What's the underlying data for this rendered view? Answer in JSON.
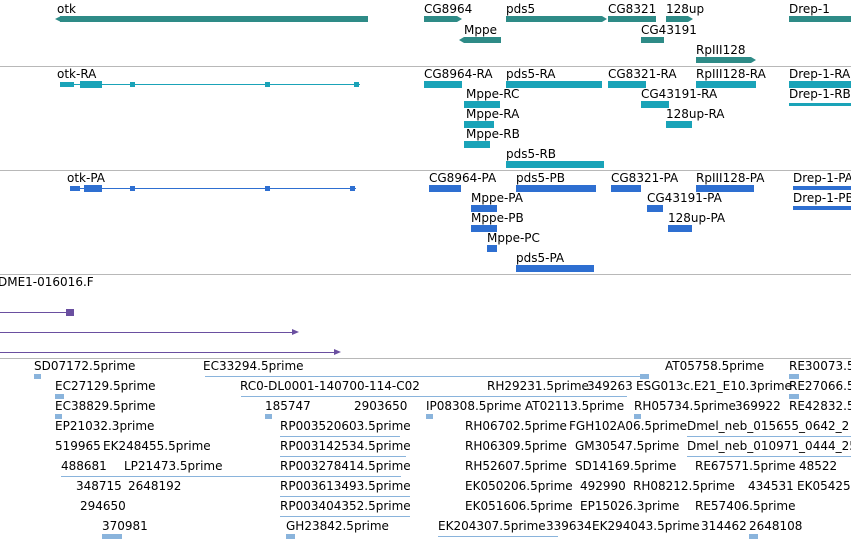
{
  "colors": {
    "gene": "#2e8b87",
    "mrna": "#1aa3b8",
    "protein": "#2e6fd1",
    "clone": "#6a4fa0",
    "est": "#8ab4dc",
    "separator": "#b8b8b8"
  },
  "tracks": {
    "gene_track": {
      "labels": [
        {
          "text": "otk"
        },
        {
          "text": "CG8964"
        },
        {
          "text": "pds5"
        },
        {
          "text": "CG8321"
        },
        {
          "text": "128up"
        },
        {
          "text": "Drep-1"
        },
        {
          "text": "Mppe"
        },
        {
          "text": "CG43191"
        },
        {
          "text": "RpIII128"
        }
      ]
    },
    "mrna_track": {
      "labels": [
        {
          "text": "otk-RA"
        },
        {
          "text": "CG8964-RA"
        },
        {
          "text": "pds5-RA"
        },
        {
          "text": "CG8321-RA"
        },
        {
          "text": "RpIII128-RA"
        },
        {
          "text": "Drep-1-RA"
        },
        {
          "text": "Mppe-RC"
        },
        {
          "text": "CG43191-RA"
        },
        {
          "text": "Drep-1-RB"
        },
        {
          "text": "Mppe-RA"
        },
        {
          "text": "128up-RA"
        },
        {
          "text": "Mppe-RB"
        },
        {
          "text": "pds5-RB"
        }
      ]
    },
    "protein_track": {
      "labels": [
        {
          "text": "otk-PA"
        },
        {
          "text": "CG8964-PA"
        },
        {
          "text": "pds5-PB"
        },
        {
          "text": "CG8321-PA"
        },
        {
          "text": "RpIII128-PA"
        },
        {
          "text": "Drep-1-PA"
        },
        {
          "text": "Mppe-PA"
        },
        {
          "text": "CG43191-PA"
        },
        {
          "text": "Drep-1-PB"
        },
        {
          "text": "Mppe-PB"
        },
        {
          "text": "128up-PA"
        },
        {
          "text": "Mppe-PC"
        },
        {
          "text": "pds5-PA"
        }
      ]
    },
    "clone_track": {
      "labels": [
        {
          "text": "DME1-016016.F"
        }
      ]
    },
    "est_track": {
      "labels": [
        {
          "text": "SD07172.5prime"
        },
        {
          "text": "EC33294.5prime"
        },
        {
          "text": "AT05758.5prime"
        },
        {
          "text": "RE30073.5"
        },
        {
          "text": "EC27129.5prime"
        },
        {
          "text": "RC0-DL0001-140700-114-C02"
        },
        {
          "text": "RH29231.5prime"
        },
        {
          "text": "349263"
        },
        {
          "text": "ESG013c.E21_E10.3prime"
        },
        {
          "text": "RE27066.5"
        },
        {
          "text": "EC38829.5prime"
        },
        {
          "text": "185747"
        },
        {
          "text": "2903650"
        },
        {
          "text": "IP08308.5prime"
        },
        {
          "text": "AT02113.5prime"
        },
        {
          "text": "RH05734.5prime"
        },
        {
          "text": "369922"
        },
        {
          "text": "RE42832.5"
        },
        {
          "text": "EP21032.3prime"
        },
        {
          "text": "RP003520603.5prime"
        },
        {
          "text": "RH06702.5prime"
        },
        {
          "text": "FGH102A06.5prime"
        },
        {
          "text": "Dmel_neb_015655_0642_2"
        },
        {
          "text": "519965"
        },
        {
          "text": "EK248455.5prime"
        },
        {
          "text": "RP003142534.5prime"
        },
        {
          "text": "RH06309.5prime"
        },
        {
          "text": "GM30547.5prime"
        },
        {
          "text": "Dmel_neb_010971_0444_25"
        },
        {
          "text": "488681"
        },
        {
          "text": "LP21473.5prime"
        },
        {
          "text": "RP003278414.5prime"
        },
        {
          "text": "RH52607.5prime"
        },
        {
          "text": "SD14169.5prime"
        },
        {
          "text": "RE67571.5prime"
        },
        {
          "text": "48522"
        },
        {
          "text": "348715"
        },
        {
          "text": "2648192"
        },
        {
          "text": "RP003613493.5prime"
        },
        {
          "text": "EK050206.5prime"
        },
        {
          "text": "492990"
        },
        {
          "text": "RH08212.5prime"
        },
        {
          "text": "434531"
        },
        {
          "text": "EK05425"
        },
        {
          "text": "294650"
        },
        {
          "text": "RP003404352.5prime"
        },
        {
          "text": "EK051606.5prime"
        },
        {
          "text": "EP15026.3prime"
        },
        {
          "text": "RE57406.5prime"
        },
        {
          "text": "370981"
        },
        {
          "text": "GH23842.5prime"
        },
        {
          "text": "EK204307.5prime"
        },
        {
          "text": "339634"
        },
        {
          "text": "EK294043.5prime"
        },
        {
          "text": "314462"
        },
        {
          "text": "2648108"
        }
      ]
    }
  }
}
